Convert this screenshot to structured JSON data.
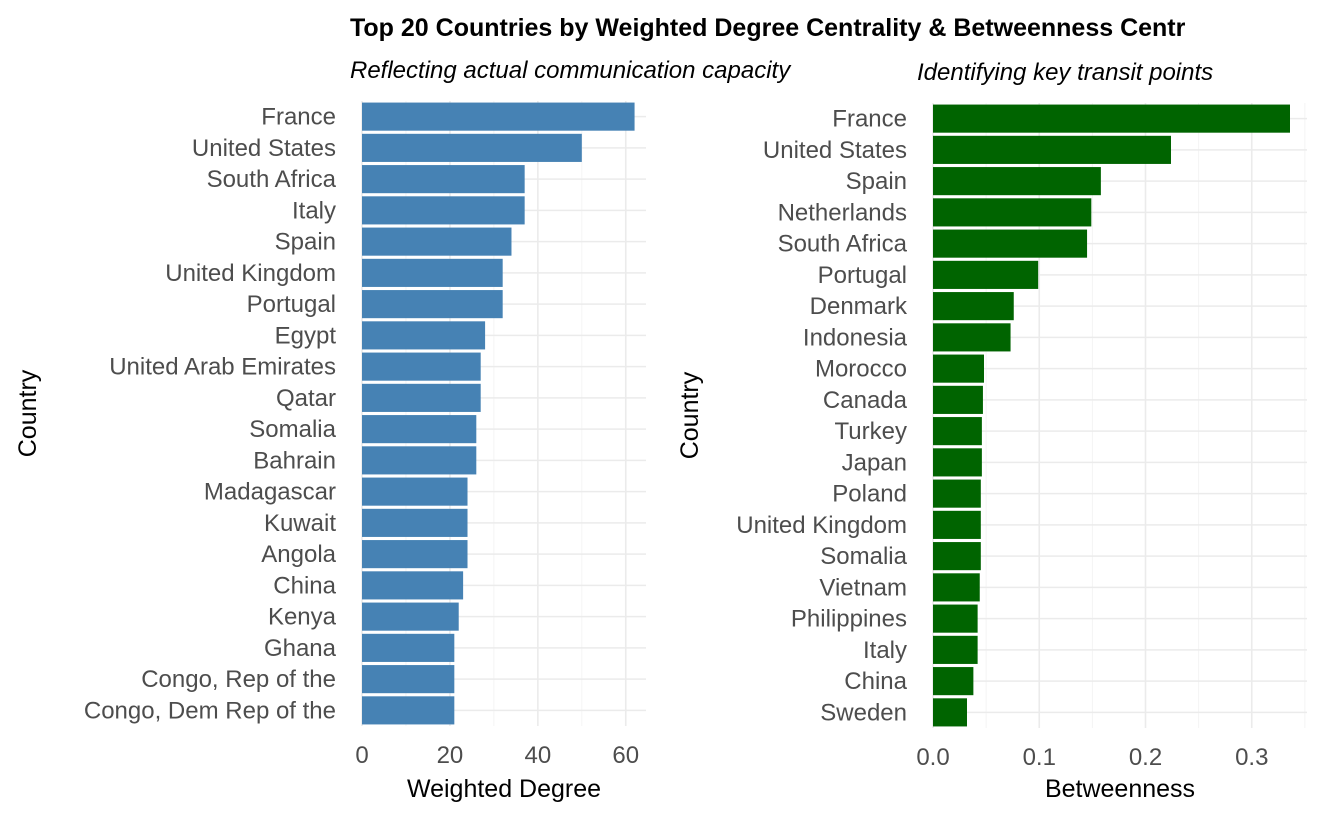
{
  "title": "Top 20 Countries by Weighted Degree Centrality & Betweenness Centr",
  "chart_data": [
    {
      "type": "bar",
      "orientation": "horizontal",
      "subtitle": "Reflecting actual communication capacity",
      "xlabel": "Weighted Degree",
      "ylabel": "Country",
      "color": "#4682B4",
      "xlim": [
        0,
        64.6
      ],
      "xticks": [
        0,
        20,
        40,
        60
      ],
      "xtick_labels": [
        "0",
        "20",
        "40",
        "60"
      ],
      "grid": true,
      "categories": [
        "France",
        "United States",
        "South Africa",
        "Italy",
        "Spain",
        "United Kingdom",
        "Portugal",
        "Egypt",
        "United Arab Emirates",
        "Qatar",
        "Somalia",
        "Bahrain",
        "Madagascar",
        "Kuwait",
        "Angola",
        "China",
        "Kenya",
        "Ghana",
        "Congo, Rep of the",
        "Congo, Dem Rep of the"
      ],
      "values": [
        62,
        50,
        37,
        37,
        34,
        32,
        32,
        28,
        27,
        27,
        26,
        26,
        24,
        24,
        24,
        23,
        22,
        21,
        21,
        21
      ]
    },
    {
      "type": "bar",
      "orientation": "horizontal",
      "subtitle": "Identifying key transit points",
      "xlabel": "Betweenness",
      "ylabel": "Country",
      "color": "#006400",
      "xlim": [
        0,
        0.352
      ],
      "xticks": [
        0,
        0.1,
        0.2,
        0.3
      ],
      "xtick_labels": [
        "0.0",
        "0.1",
        "0.2",
        "0.3"
      ],
      "grid": true,
      "categories": [
        "France",
        "United States",
        "Spain",
        "Netherlands",
        "South Africa",
        "Portugal",
        "Denmark",
        "Indonesia",
        "Morocco",
        "Canada",
        "Turkey",
        "Japan",
        "Poland",
        "United Kingdom",
        "Somalia",
        "Vietnam",
        "Philippines",
        "Italy",
        "China",
        "Sweden"
      ],
      "values": [
        0.336,
        0.224,
        0.158,
        0.149,
        0.145,
        0.099,
        0.076,
        0.073,
        0.048,
        0.047,
        0.046,
        0.046,
        0.045,
        0.045,
        0.045,
        0.044,
        0.042,
        0.042,
        0.038,
        0.032
      ]
    }
  ]
}
